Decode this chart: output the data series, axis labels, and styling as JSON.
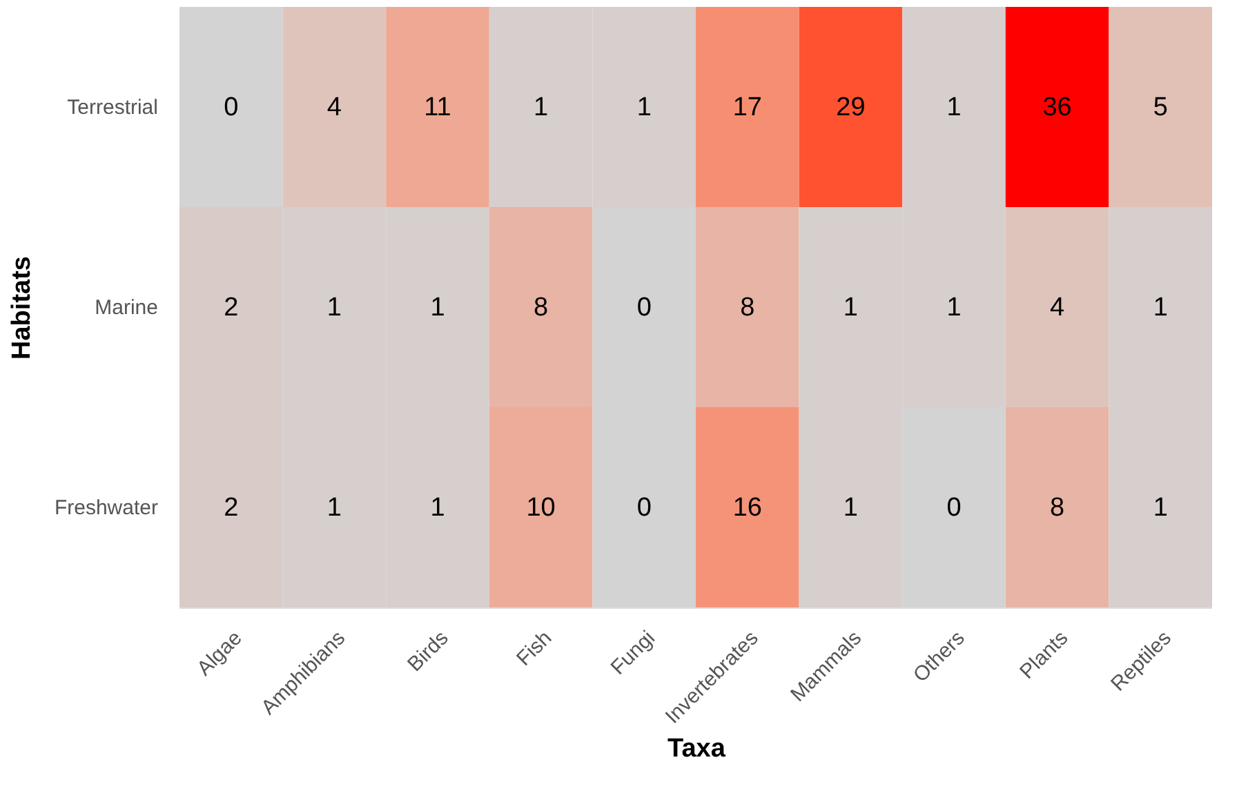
{
  "chart_data": {
    "type": "heatmap",
    "xlabel": "Taxa",
    "ylabel": "Habitats",
    "categories": [
      "Algae",
      "Amphibians",
      "Birds",
      "Fish",
      "Fungi",
      "Invertebrates",
      "Mammals",
      "Others",
      "Plants",
      "Reptiles"
    ],
    "y_categories": [
      "Terrestrial",
      "Marine",
      "Freshwater"
    ],
    "cells": [
      [
        0,
        4,
        11,
        1,
        1,
        17,
        29,
        1,
        36,
        5
      ],
      [
        2,
        1,
        1,
        8,
        0,
        8,
        1,
        1,
        4,
        1
      ],
      [
        2,
        1,
        1,
        10,
        0,
        16,
        1,
        0,
        8,
        1
      ]
    ],
    "colors": [
      "#d3d3d3",
      "#ff0000"
    ],
    "data_labels": true,
    "legend": false,
    "grid": false
  }
}
